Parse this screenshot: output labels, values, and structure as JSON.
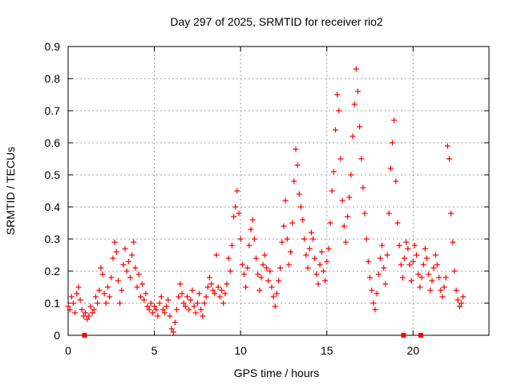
{
  "chart_data": {
    "type": "scatter",
    "title": "Day 297 of 2025, SRMTID for receiver rio2",
    "xlabel": "GPS time / hours",
    "ylabel": "SRMTID / TECUs",
    "xlim": [
      0,
      24.4
    ],
    "ylim": [
      0,
      0.9
    ],
    "grid": true,
    "x_ticks": [
      {
        "value": 0,
        "label": "0"
      },
      {
        "value": 5,
        "label": "5"
      },
      {
        "value": 10,
        "label": "10"
      },
      {
        "value": 15,
        "label": "15"
      },
      {
        "value": 20,
        "label": "20"
      }
    ],
    "y_ticks": [
      {
        "value": 0,
        "label": "0"
      },
      {
        "value": 0.1,
        "label": "0.1"
      },
      {
        "value": 0.2,
        "label": "0.2"
      },
      {
        "value": 0.3,
        "label": "0.3"
      },
      {
        "value": 0.4,
        "label": "0.4"
      },
      {
        "value": 0.5,
        "label": "0.5"
      },
      {
        "value": 0.6,
        "label": "0.6"
      },
      {
        "value": 0.7,
        "label": "0.7"
      },
      {
        "value": 0.8,
        "label": "0.8"
      },
      {
        "value": 0.9,
        "label": "0.9"
      }
    ],
    "series_color": "#ff0000",
    "marker": "+",
    "series": [
      {
        "name": "SRMTID",
        "points": [
          [
            0.0,
            0.09
          ],
          [
            0.1,
            0.08
          ],
          [
            0.2,
            0.12
          ],
          [
            0.3,
            0.1
          ],
          [
            0.4,
            0.07
          ],
          [
            0.5,
            0.13
          ],
          [
            0.6,
            0.15
          ],
          [
            0.7,
            0.11
          ],
          [
            0.8,
            0.08
          ],
          [
            0.9,
            0.06
          ],
          [
            1.0,
            0.07
          ],
          [
            1.1,
            0.05
          ],
          [
            1.2,
            0.06
          ],
          [
            1.3,
            0.09
          ],
          [
            1.4,
            0.07
          ],
          [
            1.5,
            0.08
          ],
          [
            1.6,
            0.12
          ],
          [
            1.7,
            0.1
          ],
          [
            1.8,
            0.14
          ],
          [
            1.9,
            0.21
          ],
          [
            2.0,
            0.19
          ],
          [
            2.1,
            0.13
          ],
          [
            2.2,
            0.1
          ],
          [
            2.3,
            0.15
          ],
          [
            2.4,
            0.12
          ],
          [
            2.5,
            0.18
          ],
          [
            2.6,
            0.24
          ],
          [
            2.7,
            0.29
          ],
          [
            2.8,
            0.26
          ],
          [
            2.9,
            0.17
          ],
          [
            3.0,
            0.1
          ],
          [
            3.1,
            0.14
          ],
          [
            3.2,
            0.22
          ],
          [
            3.3,
            0.27
          ],
          [
            3.4,
            0.2
          ],
          [
            3.5,
            0.23
          ],
          [
            3.6,
            0.18
          ],
          [
            3.7,
            0.25
          ],
          [
            3.8,
            0.29
          ],
          [
            3.9,
            0.21
          ],
          [
            4.0,
            0.15
          ],
          [
            4.1,
            0.19
          ],
          [
            4.2,
            0.12
          ],
          [
            4.3,
            0.16
          ],
          [
            4.4,
            0.11
          ],
          [
            4.5,
            0.13
          ],
          [
            4.6,
            0.09
          ],
          [
            4.7,
            0.08
          ],
          [
            4.8,
            0.1
          ],
          [
            4.9,
            0.07
          ],
          [
            5.0,
            0.09
          ],
          [
            5.1,
            0.08
          ],
          [
            5.2,
            0.06
          ],
          [
            5.3,
            0.1
          ],
          [
            5.4,
            0.12
          ],
          [
            5.5,
            0.08
          ],
          [
            5.6,
            0.07
          ],
          [
            5.7,
            0.09
          ],
          [
            5.8,
            0.11
          ],
          [
            5.9,
            0.06
          ],
          [
            6.0,
            0.02
          ],
          [
            6.1,
            0.01
          ],
          [
            6.2,
            0.04
          ],
          [
            6.3,
            0.08
          ],
          [
            6.4,
            0.12
          ],
          [
            6.5,
            0.16
          ],
          [
            6.6,
            0.13
          ],
          [
            6.7,
            0.1
          ],
          [
            6.8,
            0.09
          ],
          [
            6.9,
            0.12
          ],
          [
            7.0,
            0.08
          ],
          [
            7.1,
            0.11
          ],
          [
            7.2,
            0.14
          ],
          [
            7.3,
            0.09
          ],
          [
            7.4,
            0.07
          ],
          [
            7.5,
            0.1
          ],
          [
            7.6,
            0.13
          ],
          [
            7.7,
            0.08
          ],
          [
            7.8,
            0.06
          ],
          [
            7.9,
            0.1
          ],
          [
            8.0,
            0.12
          ],
          [
            8.1,
            0.15
          ],
          [
            8.2,
            0.18
          ],
          [
            8.3,
            0.16
          ],
          [
            8.4,
            0.14
          ],
          [
            8.5,
            0.13
          ],
          [
            8.6,
            0.25
          ],
          [
            8.7,
            0.15
          ],
          [
            8.8,
            0.12
          ],
          [
            8.9,
            0.14
          ],
          [
            9.0,
            0.1
          ],
          [
            9.1,
            0.13
          ],
          [
            9.2,
            0.16
          ],
          [
            9.3,
            0.24
          ],
          [
            9.4,
            0.2
          ],
          [
            9.5,
            0.28
          ],
          [
            9.6,
            0.37
          ],
          [
            9.7,
            0.4
          ],
          [
            9.8,
            0.45
          ],
          [
            9.9,
            0.38
          ],
          [
            10.0,
            0.3
          ],
          [
            10.1,
            0.22
          ],
          [
            10.2,
            0.19
          ],
          [
            10.3,
            0.15
          ],
          [
            10.4,
            0.21
          ],
          [
            10.5,
            0.28
          ],
          [
            10.6,
            0.33
          ],
          [
            10.7,
            0.36
          ],
          [
            10.8,
            0.3
          ],
          [
            10.9,
            0.24
          ],
          [
            11.0,
            0.19
          ],
          [
            11.1,
            0.14
          ],
          [
            11.2,
            0.18
          ],
          [
            11.3,
            0.22
          ],
          [
            11.4,
            0.25
          ],
          [
            11.5,
            0.21
          ],
          [
            11.6,
            0.17
          ],
          [
            11.7,
            0.2
          ],
          [
            11.8,
            0.15
          ],
          [
            11.9,
            0.12
          ],
          [
            12.0,
            0.09
          ],
          [
            12.1,
            0.13
          ],
          [
            12.2,
            0.17
          ],
          [
            12.3,
            0.21
          ],
          [
            12.4,
            0.29
          ],
          [
            12.5,
            0.34
          ],
          [
            12.6,
            0.42
          ],
          [
            12.7,
            0.3
          ],
          [
            12.8,
            0.22
          ],
          [
            12.9,
            0.26
          ],
          [
            13.0,
            0.35
          ],
          [
            13.1,
            0.48
          ],
          [
            13.2,
            0.58
          ],
          [
            13.3,
            0.53
          ],
          [
            13.4,
            0.44
          ],
          [
            13.5,
            0.4
          ],
          [
            13.6,
            0.36
          ],
          [
            13.7,
            0.3
          ],
          [
            13.8,
            0.25
          ],
          [
            13.9,
            0.21
          ],
          [
            14.0,
            0.27
          ],
          [
            14.1,
            0.32
          ],
          [
            14.2,
            0.3
          ],
          [
            14.3,
            0.24
          ],
          [
            14.4,
            0.19
          ],
          [
            14.5,
            0.16
          ],
          [
            14.6,
            0.22
          ],
          [
            14.7,
            0.26
          ],
          [
            14.8,
            0.2
          ],
          [
            14.9,
            0.17
          ],
          [
            15.0,
            0.23
          ],
          [
            15.1,
            0.27
          ],
          [
            15.2,
            0.35
          ],
          [
            15.3,
            0.45
          ],
          [
            15.4,
            0.51
          ],
          [
            15.5,
            0.64
          ],
          [
            15.6,
            0.75
          ],
          [
            15.7,
            0.7
          ],
          [
            15.8,
            0.55
          ],
          [
            15.9,
            0.42
          ],
          [
            16.0,
            0.34
          ],
          [
            16.1,
            0.29
          ],
          [
            16.2,
            0.37
          ],
          [
            16.3,
            0.43
          ],
          [
            16.4,
            0.5
          ],
          [
            16.5,
            0.62
          ],
          [
            16.6,
            0.72
          ],
          [
            16.7,
            0.83
          ],
          [
            16.8,
            0.76
          ],
          [
            16.9,
            0.65
          ],
          [
            17.0,
            0.55
          ],
          [
            17.1,
            0.46
          ],
          [
            17.2,
            0.38
          ],
          [
            17.3,
            0.3
          ],
          [
            17.4,
            0.23
          ],
          [
            17.5,
            0.18
          ],
          [
            17.6,
            0.14
          ],
          [
            17.7,
            0.1
          ],
          [
            17.8,
            0.08
          ],
          [
            17.9,
            0.13
          ],
          [
            18.0,
            0.19
          ],
          [
            18.1,
            0.24
          ],
          [
            18.2,
            0.28
          ],
          [
            18.3,
            0.21
          ],
          [
            18.4,
            0.16
          ],
          [
            18.5,
            0.25
          ],
          [
            18.6,
            0.38
          ],
          [
            18.7,
            0.52
          ],
          [
            18.8,
            0.6
          ],
          [
            18.9,
            0.67
          ],
          [
            19.0,
            0.48
          ],
          [
            19.1,
            0.35
          ],
          [
            19.2,
            0.28
          ],
          [
            19.3,
            0.22
          ],
          [
            19.4,
            0.18
          ],
          [
            19.5,
            0.24
          ],
          [
            19.6,
            0.29
          ],
          [
            19.7,
            0.27
          ],
          [
            19.8,
            0.22
          ],
          [
            19.9,
            0.17
          ],
          [
            20.0,
            0.23
          ],
          [
            20.1,
            0.28
          ],
          [
            20.2,
            0.25
          ],
          [
            20.3,
            0.19
          ],
          [
            20.4,
            0.15
          ],
          [
            20.5,
            0.18
          ],
          [
            20.6,
            0.22
          ],
          [
            20.7,
            0.27
          ],
          [
            20.8,
            0.24
          ],
          [
            20.9,
            0.19
          ],
          [
            21.0,
            0.14
          ],
          [
            21.1,
            0.17
          ],
          [
            21.2,
            0.21
          ],
          [
            21.3,
            0.25
          ],
          [
            21.4,
            0.22
          ],
          [
            21.5,
            0.18
          ],
          [
            21.6,
            0.14
          ],
          [
            21.7,
            0.12
          ],
          [
            21.8,
            0.15
          ],
          [
            21.9,
            0.18
          ],
          [
            22.0,
            0.59
          ],
          [
            22.1,
            0.55
          ],
          [
            22.2,
            0.38
          ],
          [
            22.3,
            0.29
          ],
          [
            22.4,
            0.2
          ],
          [
            22.5,
            0.14
          ],
          [
            22.6,
            0.11
          ],
          [
            22.7,
            0.09
          ],
          [
            22.8,
            0.1
          ],
          [
            22.9,
            0.12
          ]
        ]
      }
    ],
    "gap_markers_x": [
      0.95,
      19.45,
      20.45
    ]
  }
}
